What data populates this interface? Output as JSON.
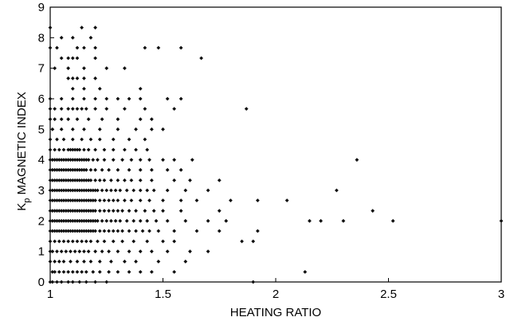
{
  "chart_data": {
    "type": "scatter",
    "xlabel": "HEATING RATIO",
    "ylabel": {
      "symbol": "K",
      "subscript": "p",
      "text": " MAGNETIC INDEX"
    },
    "xlim": [
      1,
      3
    ],
    "ylim": [
      0,
      9
    ],
    "xticks": [
      1,
      1.5,
      2,
      2.5,
      3
    ],
    "xtick_labels": [
      "1",
      "1.5",
      "2",
      "2.5",
      "3"
    ],
    "yticks": [
      0,
      1,
      2,
      3,
      4,
      5,
      6,
      7,
      8,
      9
    ],
    "ytick_labels": [
      "0",
      "1",
      "2",
      "3",
      "4",
      "5",
      "6",
      "7",
      "8",
      "9"
    ],
    "grid": false,
    "marker_color": "#111111",
    "series": [
      {
        "levels": [
          {
            "y": 0,
            "x": [
              1.0,
              1.01,
              1.03,
              1.05,
              1.08,
              1.1,
              1.13,
              1.16,
              1.2,
              1.25,
              1.9
            ]
          },
          {
            "y": 0.33,
            "x": [
              1.01,
              1.02,
              1.04,
              1.06,
              1.08,
              1.1,
              1.12,
              1.14,
              1.16,
              1.19,
              1.22,
              1.26,
              1.3,
              1.35,
              1.4,
              1.45,
              1.55,
              2.13
            ]
          },
          {
            "y": 0.67,
            "x": [
              1.0,
              1.02,
              1.04,
              1.06,
              1.09,
              1.12,
              1.15,
              1.18,
              1.22,
              1.27,
              1.33,
              1.38,
              1.48,
              1.6
            ]
          },
          {
            "y": 1.0,
            "x": [
              1.0,
              1.01,
              1.03,
              1.05,
              1.07,
              1.09,
              1.11,
              1.13,
              1.15,
              1.17,
              1.2,
              1.23,
              1.26,
              1.3,
              1.35,
              1.4,
              1.45,
              1.52,
              1.62,
              1.7
            ]
          },
          {
            "y": 1.33,
            "x": [
              1.0,
              1.02,
              1.04,
              1.06,
              1.08,
              1.1,
              1.12,
              1.14,
              1.16,
              1.18,
              1.21,
              1.24,
              1.28,
              1.32,
              1.37,
              1.43,
              1.5,
              1.55,
              1.85,
              1.9
            ]
          },
          {
            "y": 1.67,
            "x": [
              1.0,
              1.01,
              1.02,
              1.03,
              1.04,
              1.05,
              1.06,
              1.07,
              1.08,
              1.09,
              1.1,
              1.11,
              1.12,
              1.13,
              1.14,
              1.15,
              1.16,
              1.17,
              1.18,
              1.19,
              1.2,
              1.22,
              1.24,
              1.26,
              1.28,
              1.3,
              1.32,
              1.35,
              1.38,
              1.41,
              1.44,
              1.48,
              1.55,
              1.65,
              1.75,
              1.92
            ]
          },
          {
            "y": 2.0,
            "x": [
              1.0,
              1.01,
              1.02,
              1.03,
              1.04,
              1.05,
              1.06,
              1.07,
              1.08,
              1.09,
              1.1,
              1.11,
              1.12,
              1.13,
              1.14,
              1.15,
              1.16,
              1.17,
              1.18,
              1.19,
              1.2,
              1.21,
              1.23,
              1.25,
              1.27,
              1.29,
              1.31,
              1.34,
              1.37,
              1.4,
              1.43,
              1.47,
              1.52,
              1.6,
              1.7,
              1.78,
              2.15,
              2.2,
              2.3,
              2.52,
              3.0
            ]
          },
          {
            "y": 2.33,
            "x": [
              1.0,
              1.01,
              1.02,
              1.03,
              1.04,
              1.05,
              1.06,
              1.07,
              1.08,
              1.09,
              1.1,
              1.11,
              1.12,
              1.13,
              1.14,
              1.15,
              1.16,
              1.17,
              1.18,
              1.19,
              1.2,
              1.22,
              1.24,
              1.26,
              1.28,
              1.3,
              1.32,
              1.35,
              1.38,
              1.42,
              1.46,
              1.5,
              1.58,
              1.75,
              2.43
            ]
          },
          {
            "y": 2.67,
            "x": [
              1.0,
              1.01,
              1.02,
              1.03,
              1.04,
              1.05,
              1.06,
              1.07,
              1.08,
              1.09,
              1.1,
              1.11,
              1.12,
              1.13,
              1.14,
              1.15,
              1.16,
              1.17,
              1.18,
              1.19,
              1.2,
              1.22,
              1.24,
              1.26,
              1.28,
              1.3,
              1.33,
              1.36,
              1.4,
              1.44,
              1.5,
              1.58,
              1.65,
              1.8,
              1.92,
              2.05
            ]
          },
          {
            "y": 3.0,
            "x": [
              1.0,
              1.01,
              1.02,
              1.03,
              1.04,
              1.05,
              1.06,
              1.07,
              1.08,
              1.09,
              1.1,
              1.11,
              1.12,
              1.13,
              1.14,
              1.15,
              1.16,
              1.17,
              1.18,
              1.19,
              1.2,
              1.21,
              1.23,
              1.25,
              1.27,
              1.29,
              1.31,
              1.34,
              1.37,
              1.4,
              1.43,
              1.46,
              1.52,
              1.6,
              1.7,
              2.27
            ]
          },
          {
            "y": 3.33,
            "x": [
              1.0,
              1.01,
              1.02,
              1.03,
              1.04,
              1.05,
              1.06,
              1.07,
              1.08,
              1.09,
              1.1,
              1.11,
              1.12,
              1.13,
              1.14,
              1.15,
              1.16,
              1.17,
              1.18,
              1.2,
              1.22,
              1.24,
              1.27,
              1.3,
              1.33,
              1.36,
              1.4,
              1.45,
              1.55,
              1.62,
              1.75
            ]
          },
          {
            "y": 3.67,
            "x": [
              1.0,
              1.01,
              1.02,
              1.03,
              1.04,
              1.05,
              1.06,
              1.07,
              1.08,
              1.09,
              1.1,
              1.11,
              1.12,
              1.13,
              1.14,
              1.15,
              1.16,
              1.18,
              1.2,
              1.23,
              1.26,
              1.3,
              1.35,
              1.4,
              1.45,
              1.52,
              1.58
            ]
          },
          {
            "y": 4.0,
            "x": [
              1.0,
              1.01,
              1.02,
              1.03,
              1.04,
              1.05,
              1.06,
              1.07,
              1.08,
              1.09,
              1.1,
              1.11,
              1.12,
              1.13,
              1.14,
              1.15,
              1.16,
              1.17,
              1.19,
              1.21,
              1.24,
              1.28,
              1.32,
              1.36,
              1.4,
              1.44,
              1.5,
              1.55,
              1.63,
              2.36
            ]
          },
          {
            "y": 4.33,
            "x": [
              1.0,
              1.02,
              1.04,
              1.06,
              1.08,
              1.09,
              1.1,
              1.11,
              1.12,
              1.13,
              1.15,
              1.17,
              1.2,
              1.24,
              1.28,
              1.33,
              1.38,
              1.43
            ]
          },
          {
            "y": 4.67,
            "x": [
              1.0,
              1.03,
              1.06,
              1.1,
              1.14,
              1.18,
              1.22,
              1.28,
              1.35,
              1.42
            ]
          },
          {
            "y": 5.0,
            "x": [
              1.01,
              1.05,
              1.1,
              1.15,
              1.22,
              1.3,
              1.38,
              1.45,
              1.5
            ]
          },
          {
            "y": 5.33,
            "x": [
              1.0,
              1.02,
              1.05,
              1.08,
              1.12,
              1.17,
              1.23,
              1.3,
              1.4,
              1.45
            ]
          },
          {
            "y": 5.67,
            "x": [
              1.0,
              1.02,
              1.05,
              1.08,
              1.1,
              1.12,
              1.14,
              1.16,
              1.2,
              1.25,
              1.33,
              1.42,
              1.55,
              1.87
            ]
          },
          {
            "y": 6.0,
            "x": [
              1.0,
              1.05,
              1.1,
              1.15,
              1.2,
              1.25,
              1.3,
              1.35,
              1.4,
              1.52,
              1.58
            ]
          },
          {
            "y": 6.33,
            "x": [
              1.1,
              1.15,
              1.22,
              1.4
            ]
          },
          {
            "y": 6.67,
            "x": [
              1.08,
              1.1,
              1.12,
              1.15,
              1.2
            ]
          },
          {
            "y": 7.0,
            "x": [
              1.02,
              1.08,
              1.15,
              1.25,
              1.33
            ]
          },
          {
            "y": 7.33,
            "x": [
              1.05,
              1.08,
              1.1,
              1.12,
              1.2,
              1.67
            ]
          },
          {
            "y": 7.67,
            "x": [
              1.0,
              1.03,
              1.12,
              1.15,
              1.2,
              1.42,
              1.48,
              1.58
            ]
          },
          {
            "y": 8.0,
            "x": [
              1.05,
              1.1,
              1.18
            ]
          },
          {
            "y": 8.33,
            "x": [
              1.0,
              1.14,
              1.2
            ]
          }
        ]
      }
    ]
  }
}
